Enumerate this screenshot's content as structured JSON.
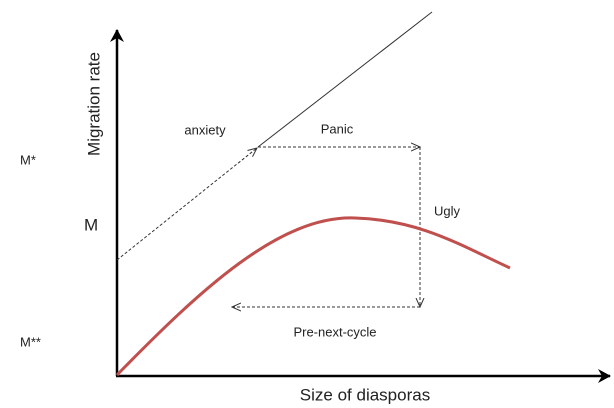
{
  "axes": {
    "y_label": "Migration rate",
    "x_label": "Size of diasporas"
  },
  "levels": [
    "M*",
    "M",
    "M**"
  ],
  "annotations": [
    "anxiety",
    "Panic",
    "Ugly",
    "Pre-next-cycle"
  ]
}
